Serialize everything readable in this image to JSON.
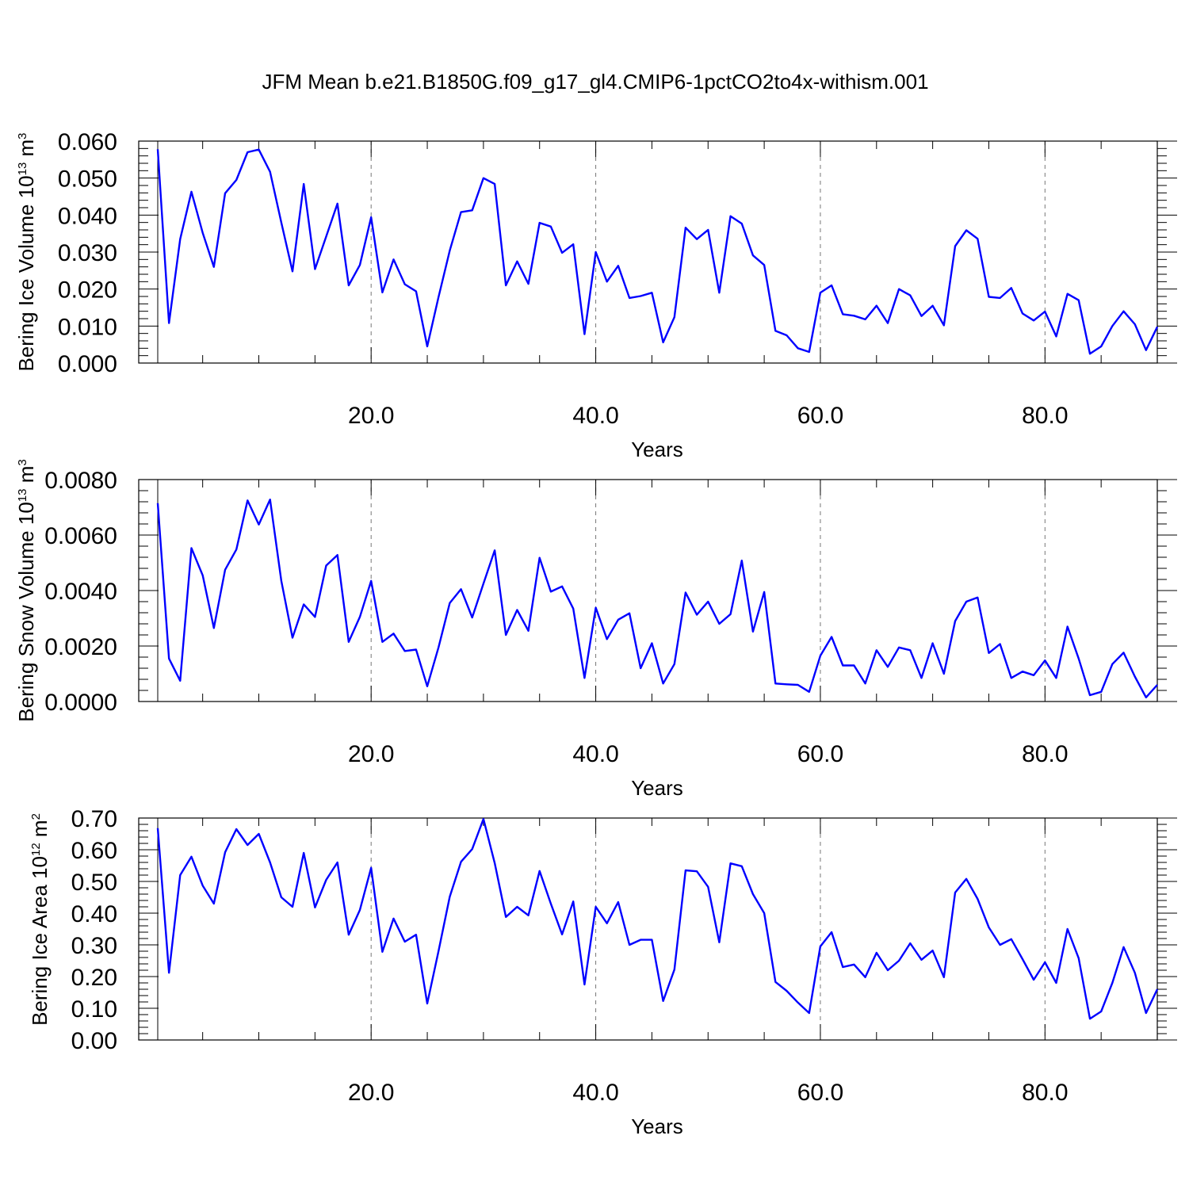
{
  "title": "JFM Mean b.e21.B1850G.f09_g17_gl4.CMIP6-1pctCO2to4x-withism.001",
  "series_color": "#0000ff",
  "chart_data": [
    {
      "type": "line",
      "xlabel": "Years",
      "ylabel": {
        "text": "Bering Ice Volume 10",
        "sup1": "13",
        "mid": " m",
        "sup2": "3"
      },
      "xlim": [
        1,
        90
      ],
      "ylim": [
        0,
        0.06
      ],
      "xticks": [
        20,
        40,
        60,
        80
      ],
      "xtick_labels": [
        "20.0",
        "40.0",
        "60.0",
        "80.0"
      ],
      "yticks": [
        0,
        0.01,
        0.02,
        0.03,
        0.04,
        0.05,
        0.06
      ],
      "ytick_labels": [
        "0.000",
        "0.010",
        "0.020",
        "0.030",
        "0.040",
        "0.050",
        "0.060"
      ],
      "grid": "x-dashed",
      "x_start": 1,
      "values": [
        0.0578,
        0.0108,
        0.0335,
        0.0463,
        0.0352,
        0.026,
        0.0459,
        0.0495,
        0.057,
        0.0577,
        0.0517,
        0.038,
        0.0248,
        0.0484,
        0.0254,
        0.0342,
        0.0431,
        0.021,
        0.0265,
        0.0394,
        0.0191,
        0.028,
        0.0213,
        0.0194,
        0.0045,
        0.0178,
        0.0304,
        0.0408,
        0.0413,
        0.05,
        0.0484,
        0.021,
        0.0275,
        0.0214,
        0.0379,
        0.0369,
        0.0298,
        0.0321,
        0.0078,
        0.03,
        0.022,
        0.0263,
        0.0176,
        0.0181,
        0.019,
        0.0056,
        0.0124,
        0.0366,
        0.0335,
        0.036,
        0.019,
        0.0397,
        0.0377,
        0.0291,
        0.0265,
        0.0087,
        0.0075,
        0.004,
        0.003,
        0.019,
        0.021,
        0.0132,
        0.0128,
        0.0118,
        0.0155,
        0.0108,
        0.02,
        0.0183,
        0.0127,
        0.0155,
        0.0102,
        0.0316,
        0.0359,
        0.0336,
        0.0179,
        0.0176,
        0.0203,
        0.0134,
        0.0115,
        0.0139,
        0.0072,
        0.0187,
        0.017,
        0.0025,
        0.0045,
        0.01,
        0.014,
        0.0105,
        0.0035,
        0.0098
      ]
    },
    {
      "type": "line",
      "xlabel": "Years",
      "ylabel": {
        "text": "Bering Snow Volume 10",
        "sup1": "13",
        "mid": " m",
        "sup2": "3"
      },
      "xlim": [
        1,
        90
      ],
      "ylim": [
        0,
        0.008
      ],
      "xticks": [
        20,
        40,
        60,
        80
      ],
      "xtick_labels": [
        "20.0",
        "40.0",
        "60.0",
        "80.0"
      ],
      "yticks": [
        0,
        0.002,
        0.004,
        0.006,
        0.008
      ],
      "ytick_labels": [
        "0.0000",
        "0.0020",
        "0.0040",
        "0.0060",
        "0.0080"
      ],
      "grid": "x-dashed",
      "x_start": 1,
      "values": [
        0.00715,
        0.00155,
        0.00075,
        0.00553,
        0.00455,
        0.00265,
        0.00475,
        0.00548,
        0.00725,
        0.00638,
        0.00728,
        0.00435,
        0.0023,
        0.0035,
        0.00305,
        0.0049,
        0.00528,
        0.00215,
        0.00305,
        0.00435,
        0.00215,
        0.00245,
        0.00182,
        0.00187,
        0.00055,
        0.00195,
        0.00355,
        0.00405,
        0.00303,
        0.00425,
        0.00545,
        0.0024,
        0.0033,
        0.00255,
        0.00518,
        0.00396,
        0.00415,
        0.00335,
        0.00085,
        0.00338,
        0.00225,
        0.00295,
        0.00318,
        0.0012,
        0.0021,
        0.00065,
        0.00135,
        0.00393,
        0.00313,
        0.0036,
        0.0028,
        0.00315,
        0.00508,
        0.00252,
        0.00395,
        0.00065,
        0.00062,
        0.0006,
        0.00035,
        0.00165,
        0.00233,
        0.0013,
        0.0013,
        0.00065,
        0.00185,
        0.00125,
        0.00195,
        0.00185,
        0.00085,
        0.0021,
        0.001,
        0.0029,
        0.0036,
        0.00375,
        0.00175,
        0.00207,
        0.00085,
        0.00108,
        0.00095,
        0.00148,
        0.00085,
        0.0027,
        0.00155,
        0.00023,
        0.00035,
        0.00135,
        0.00176,
        0.0009,
        0.00015,
        0.0006
      ]
    },
    {
      "type": "line",
      "xlabel": "Years",
      "ylabel": {
        "text": "Bering Ice Area 10",
        "sup1": "12",
        "mid": " m",
        "sup2": "2"
      },
      "xlim": [
        1,
        90
      ],
      "ylim": [
        0,
        0.7
      ],
      "xticks": [
        20,
        40,
        60,
        80
      ],
      "xtick_labels": [
        "20.0",
        "40.0",
        "60.0",
        "80.0"
      ],
      "yticks": [
        0,
        0.1,
        0.2,
        0.3,
        0.4,
        0.5,
        0.6,
        0.7
      ],
      "ytick_labels": [
        "0.00",
        "0.10",
        "0.20",
        "0.30",
        "0.40",
        "0.50",
        "0.60",
        "0.70"
      ],
      "grid": "x-dashed",
      "x_start": 1,
      "values": [
        0.668,
        0.212,
        0.52,
        0.578,
        0.487,
        0.43,
        0.592,
        0.665,
        0.615,
        0.65,
        0.56,
        0.45,
        0.42,
        0.59,
        0.418,
        0.505,
        0.56,
        0.332,
        0.41,
        0.543,
        0.278,
        0.383,
        0.31,
        0.332,
        0.115,
        0.28,
        0.452,
        0.562,
        0.602,
        0.697,
        0.558,
        0.388,
        0.42,
        0.393,
        0.533,
        0.43,
        0.333,
        0.437,
        0.175,
        0.42,
        0.368,
        0.435,
        0.3,
        0.316,
        0.316,
        0.123,
        0.222,
        0.535,
        0.532,
        0.483,
        0.308,
        0.557,
        0.548,
        0.46,
        0.4,
        0.183,
        0.155,
        0.118,
        0.085,
        0.295,
        0.34,
        0.23,
        0.238,
        0.198,
        0.275,
        0.22,
        0.25,
        0.305,
        0.253,
        0.282,
        0.198,
        0.465,
        0.508,
        0.445,
        0.355,
        0.3,
        0.318,
        0.255,
        0.19,
        0.245,
        0.18,
        0.35,
        0.258,
        0.067,
        0.09,
        0.18,
        0.293,
        0.212,
        0.085,
        0.16
      ]
    }
  ]
}
